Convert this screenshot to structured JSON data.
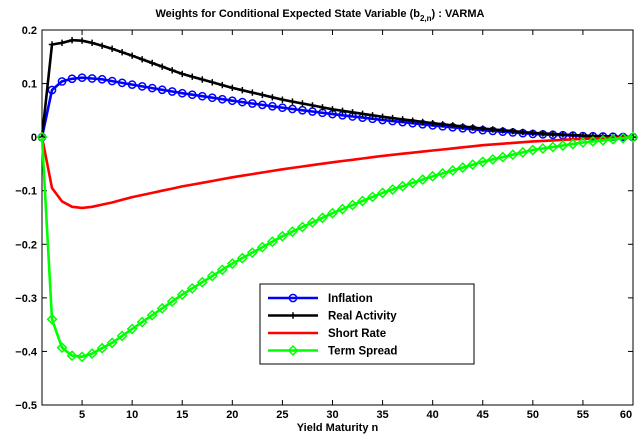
{
  "chart_data": {
    "type": "line",
    "title_main": "Weights for Conditional Expected State Variable (b",
    "title_sub": "2,n",
    "title_tail": ") : VARMA",
    "xlabel": "Yield Maturity n",
    "ylabel": "",
    "xlim": [
      1,
      60
    ],
    "ylim": [
      -0.5,
      0.2
    ],
    "xticks": [
      5,
      10,
      15,
      20,
      25,
      30,
      35,
      40,
      45,
      50,
      55,
      60
    ],
    "xtick_labels": [
      "5",
      "10",
      "15",
      "20",
      "25",
      "30",
      "35",
      "40",
      "45",
      "50",
      "55",
      "60"
    ],
    "yticks": [
      -0.5,
      -0.4,
      -0.3,
      -0.2,
      -0.1,
      0,
      0.1,
      0.2
    ],
    "ytick_labels": [
      "−0.5",
      "−0.4",
      "−0.3",
      "−0.2",
      "−0.1",
      "0",
      "0.1",
      "0.2"
    ],
    "grid": false,
    "legend_position": "lower-right",
    "series": [
      {
        "name": "Inflation",
        "color": "#0000ff",
        "marker": "circle",
        "keypoints": [
          [
            1,
            0
          ],
          [
            2,
            0.088
          ],
          [
            3,
            0.104
          ],
          [
            4,
            0.109
          ],
          [
            5,
            0.111
          ],
          [
            7,
            0.108
          ],
          [
            10,
            0.098
          ],
          [
            15,
            0.082
          ],
          [
            20,
            0.068
          ],
          [
            25,
            0.055
          ],
          [
            30,
            0.043
          ],
          [
            35,
            0.032
          ],
          [
            40,
            0.022
          ],
          [
            45,
            0.013
          ],
          [
            50,
            0.006
          ],
          [
            55,
            0.002
          ],
          [
            60,
            0
          ]
        ]
      },
      {
        "name": "Real Activity",
        "color": "#000000",
        "marker": "plus",
        "keypoints": [
          [
            1,
            0
          ],
          [
            2,
            0.173
          ],
          [
            3,
            0.176
          ],
          [
            4,
            0.181
          ],
          [
            5,
            0.18
          ],
          [
            6,
            0.176
          ],
          [
            8,
            0.165
          ],
          [
            10,
            0.152
          ],
          [
            15,
            0.118
          ],
          [
            20,
            0.092
          ],
          [
            25,
            0.07
          ],
          [
            30,
            0.052
          ],
          [
            35,
            0.038
          ],
          [
            40,
            0.026
          ],
          [
            45,
            0.016
          ],
          [
            50,
            0.008
          ],
          [
            55,
            0.003
          ],
          [
            60,
            0
          ]
        ]
      },
      {
        "name": "Short Rate",
        "color": "#ff0000",
        "marker": "none",
        "keypoints": [
          [
            1,
            0
          ],
          [
            2,
            -0.095
          ],
          [
            3,
            -0.12
          ],
          [
            4,
            -0.13
          ],
          [
            5,
            -0.132
          ],
          [
            6,
            -0.13
          ],
          [
            8,
            -0.122
          ],
          [
            10,
            -0.112
          ],
          [
            15,
            -0.092
          ],
          [
            20,
            -0.075
          ],
          [
            25,
            -0.06
          ],
          [
            30,
            -0.047
          ],
          [
            35,
            -0.035
          ],
          [
            40,
            -0.025
          ],
          [
            45,
            -0.015
          ],
          [
            50,
            -0.008
          ],
          [
            55,
            -0.003
          ],
          [
            60,
            0
          ]
        ]
      },
      {
        "name": "Term Spread",
        "color": "#00ff00",
        "marker": "diamond",
        "keypoints": [
          [
            1,
            0
          ],
          [
            2,
            -0.34
          ],
          [
            3,
            -0.393
          ],
          [
            4,
            -0.408
          ],
          [
            5,
            -0.41
          ],
          [
            6,
            -0.404
          ],
          [
            8,
            -0.384
          ],
          [
            10,
            -0.358
          ],
          [
            15,
            -0.294
          ],
          [
            20,
            -0.236
          ],
          [
            25,
            -0.185
          ],
          [
            30,
            -0.142
          ],
          [
            35,
            -0.104
          ],
          [
            40,
            -0.073
          ],
          [
            45,
            -0.046
          ],
          [
            50,
            -0.024
          ],
          [
            55,
            -0.01
          ],
          [
            60,
            0
          ]
        ]
      }
    ]
  }
}
